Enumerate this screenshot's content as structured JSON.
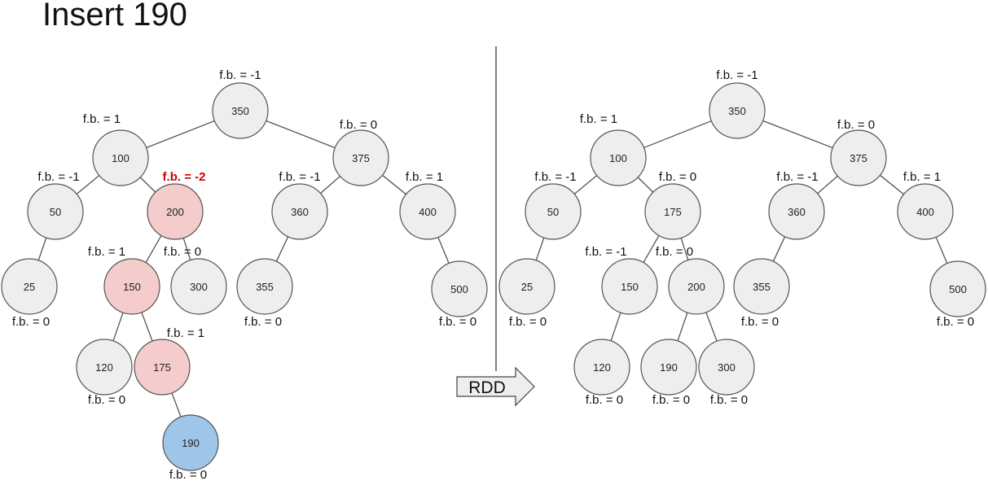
{
  "title": "Insert 190",
  "colors": {
    "node_fill": "#eeeeee",
    "node_stroke": "#555555",
    "highlight_fill": "#f4cccc",
    "inserted_fill": "#9fc5e8",
    "alert_text": "#cc0000",
    "edge": "#555555"
  },
  "arrow_label": "RDD",
  "trees": [
    {
      "name": "before",
      "nodes": [
        {
          "id": "350",
          "label": "350",
          "fb": "f.b. = -1",
          "style": "normal"
        },
        {
          "id": "100",
          "label": "100",
          "fb": "f.b. = 1",
          "style": "normal"
        },
        {
          "id": "375",
          "label": "375",
          "fb": "f.b. = 0",
          "style": "normal"
        },
        {
          "id": "50",
          "label": "50",
          "fb": "f.b. = -1",
          "style": "normal"
        },
        {
          "id": "200",
          "label": "200",
          "fb": "f.b. = -2",
          "style": "highlight",
          "fb_alert": true
        },
        {
          "id": "360",
          "label": "360",
          "fb": "f.b. = -1",
          "style": "normal"
        },
        {
          "id": "400",
          "label": "400",
          "fb": "f.b. = 1",
          "style": "normal"
        },
        {
          "id": "25",
          "label": "25",
          "fb": "f.b. = 0",
          "style": "normal"
        },
        {
          "id": "150",
          "label": "150",
          "fb": "f.b. = 1",
          "style": "highlight"
        },
        {
          "id": "300",
          "label": "300",
          "fb": "f.b. = 0",
          "style": "normal"
        },
        {
          "id": "355",
          "label": "355",
          "fb": "f.b. = 0",
          "style": "normal"
        },
        {
          "id": "500",
          "label": "500",
          "fb": "f.b. = 0",
          "style": "normal"
        },
        {
          "id": "120",
          "label": "120",
          "fb": "f.b. = 0",
          "style": "normal"
        },
        {
          "id": "175",
          "label": "175",
          "fb": "f.b. = 1",
          "style": "highlight"
        },
        {
          "id": "190",
          "label": "190",
          "fb": "f.b. = 0",
          "style": "inserted"
        }
      ],
      "edges": [
        [
          "350",
          "100"
        ],
        [
          "350",
          "375"
        ],
        [
          "100",
          "50"
        ],
        [
          "100",
          "200"
        ],
        [
          "375",
          "360"
        ],
        [
          "375",
          "400"
        ],
        [
          "50",
          "25"
        ],
        [
          "200",
          "150"
        ],
        [
          "200",
          "300"
        ],
        [
          "360",
          "355"
        ],
        [
          "400",
          "500"
        ],
        [
          "150",
          "120"
        ],
        [
          "150",
          "175"
        ],
        [
          "175",
          "190"
        ]
      ]
    },
    {
      "name": "after",
      "nodes": [
        {
          "id": "350",
          "label": "350",
          "fb": "f.b. = -1",
          "style": "normal"
        },
        {
          "id": "100",
          "label": "100",
          "fb": "f.b. = 1",
          "style": "normal"
        },
        {
          "id": "375",
          "label": "375",
          "fb": "f.b. = 0",
          "style": "normal"
        },
        {
          "id": "50",
          "label": "50",
          "fb": "f.b. = -1",
          "style": "normal"
        },
        {
          "id": "175",
          "label": "175",
          "fb": "f.b. = 0",
          "style": "normal"
        },
        {
          "id": "360",
          "label": "360",
          "fb": "f.b. = -1",
          "style": "normal"
        },
        {
          "id": "400",
          "label": "400",
          "fb": "f.b. = 1",
          "style": "normal"
        },
        {
          "id": "25",
          "label": "25",
          "fb": "f.b. = 0",
          "style": "normal"
        },
        {
          "id": "150",
          "label": "150",
          "fb": "f.b. = -1",
          "style": "normal"
        },
        {
          "id": "200",
          "label": "200",
          "fb": "f.b. = 0",
          "style": "normal"
        },
        {
          "id": "355",
          "label": "355",
          "fb": "f.b. = 0",
          "style": "normal"
        },
        {
          "id": "500",
          "label": "500",
          "fb": "f.b. = 0",
          "style": "normal"
        },
        {
          "id": "120",
          "label": "120",
          "fb": "f.b. = 0",
          "style": "normal"
        },
        {
          "id": "190",
          "label": "190",
          "fb": "f.b. = 0",
          "style": "normal"
        },
        {
          "id": "300",
          "label": "300",
          "fb": "f.b. = 0",
          "style": "normal"
        }
      ],
      "edges": [
        [
          "350",
          "100"
        ],
        [
          "350",
          "375"
        ],
        [
          "100",
          "50"
        ],
        [
          "100",
          "175"
        ],
        [
          "375",
          "360"
        ],
        [
          "375",
          "400"
        ],
        [
          "50",
          "25"
        ],
        [
          "175",
          "150"
        ],
        [
          "175",
          "200"
        ],
        [
          "360",
          "355"
        ],
        [
          "400",
          "500"
        ],
        [
          "150",
          "120"
        ],
        [
          "200",
          "190"
        ],
        [
          "200",
          "300"
        ]
      ]
    }
  ]
}
